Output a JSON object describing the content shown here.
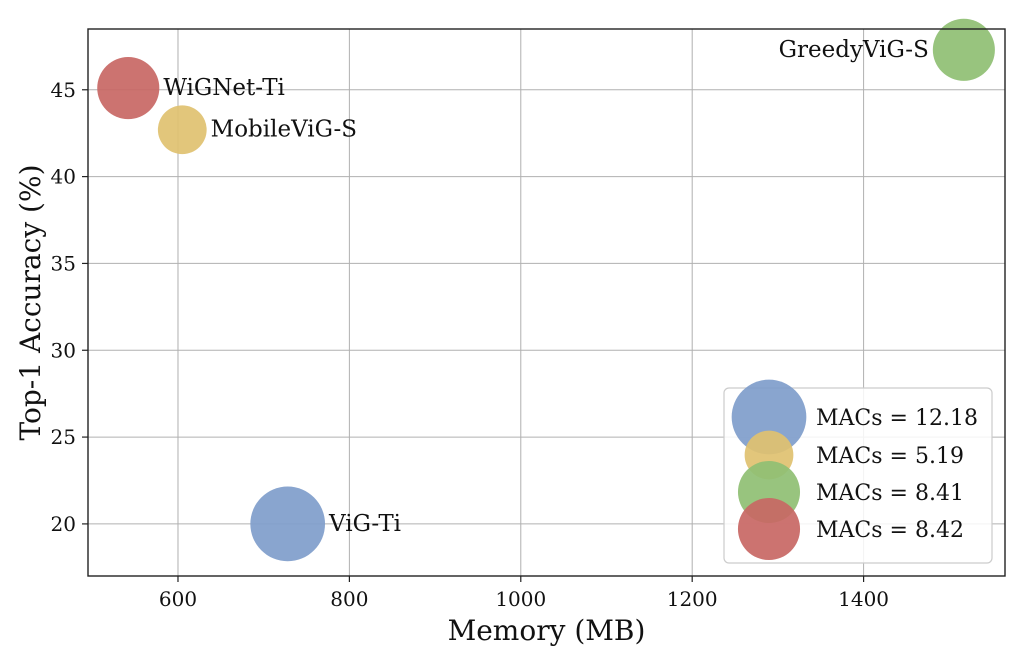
{
  "chart_data": {
    "type": "scatter",
    "xlabel": "Memory (MB)",
    "ylabel": "Top-1 Accuracy (%)",
    "xlim": [
      495,
      1565
    ],
    "ylim": [
      17,
      48.5
    ],
    "xticks": [
      600,
      800,
      1000,
      1200,
      1400
    ],
    "yticks": [
      20,
      25,
      30,
      35,
      40,
      45
    ],
    "grid": true,
    "legend_position": "lower-right",
    "points": [
      {
        "label": "ViG-Ti",
        "x": 728,
        "y": 20.0,
        "size": 12.18,
        "color": "#7f9dcb"
      },
      {
        "label": "MobileViG-S",
        "x": 605,
        "y": 42.7,
        "size": 5.19,
        "color": "#e0c170"
      },
      {
        "label": "GreedyViG-S",
        "x": 1517,
        "y": 47.3,
        "size": 8.41,
        "color": "#8fbf73"
      },
      {
        "label": "WiGNet-Ti",
        "x": 542,
        "y": 45.1,
        "size": 8.42,
        "color": "#c86764"
      }
    ],
    "legend": [
      {
        "label": "MACs = 12.18",
        "color": "#7f9dcb",
        "size": 12.18
      },
      {
        "label": "MACs = 5.19",
        "color": "#e0c170",
        "size": 5.19
      },
      {
        "label": "MACs = 8.41",
        "color": "#8fbf73",
        "size": 8.41
      },
      {
        "label": "MACs = 8.42",
        "color": "#c86764",
        "size": 8.42
      }
    ]
  }
}
